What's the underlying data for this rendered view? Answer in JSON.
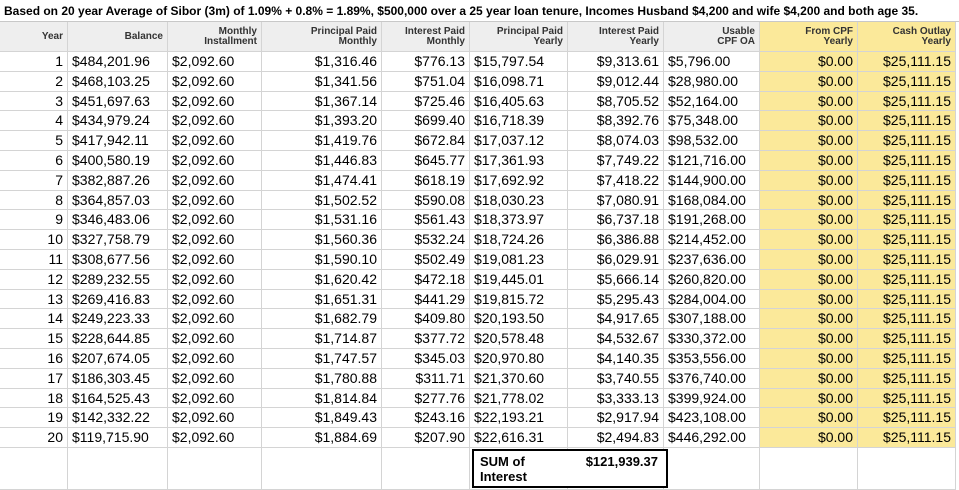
{
  "title": "Based on 20 year Average of Sibor (3m) of 1.09% + 0.8% = 1.89%, $500,000 over a 25 year loan tenure, Incomes Husband $4,200 and wife $4,200 and both age 35.",
  "table": {
    "columns": [
      [
        "Year"
      ],
      [
        "Balance"
      ],
      [
        "Monthly",
        "Installment"
      ],
      [
        "Principal Paid",
        "Monthly"
      ],
      [
        "Interest Paid",
        "Monthly"
      ],
      [
        "Principal Paid",
        "Yearly"
      ],
      [
        "Interest Paid",
        "Yearly"
      ],
      [
        "Usable",
        "CPF OA"
      ],
      [
        "From CPF",
        "Yearly"
      ],
      [
        "Cash Outlay",
        "Yearly"
      ]
    ],
    "rows": [
      [
        "1",
        "$484,201.96",
        "$2,092.60",
        "$1,316.46",
        "$776.13",
        "$15,797.54",
        "$9,313.61",
        "$5,796.00",
        "$0.00",
        "$25,111.15"
      ],
      [
        "2",
        "$468,103.25",
        "$2,092.60",
        "$1,341.56",
        "$751.04",
        "$16,098.71",
        "$9,012.44",
        "$28,980.00",
        "$0.00",
        "$25,111.15"
      ],
      [
        "3",
        "$451,697.63",
        "$2,092.60",
        "$1,367.14",
        "$725.46",
        "$16,405.63",
        "$8,705.52",
        "$52,164.00",
        "$0.00",
        "$25,111.15"
      ],
      [
        "4",
        "$434,979.24",
        "$2,092.60",
        "$1,393.20",
        "$699.40",
        "$16,718.39",
        "$8,392.76",
        "$75,348.00",
        "$0.00",
        "$25,111.15"
      ],
      [
        "5",
        "$417,942.11",
        "$2,092.60",
        "$1,419.76",
        "$672.84",
        "$17,037.12",
        "$8,074.03",
        "$98,532.00",
        "$0.00",
        "$25,111.15"
      ],
      [
        "6",
        "$400,580.19",
        "$2,092.60",
        "$1,446.83",
        "$645.77",
        "$17,361.93",
        "$7,749.22",
        "$121,716.00",
        "$0.00",
        "$25,111.15"
      ],
      [
        "7",
        "$382,887.26",
        "$2,092.60",
        "$1,474.41",
        "$618.19",
        "$17,692.92",
        "$7,418.22",
        "$144,900.00",
        "$0.00",
        "$25,111.15"
      ],
      [
        "8",
        "$364,857.03",
        "$2,092.60",
        "$1,502.52",
        "$590.08",
        "$18,030.23",
        "$7,080.91",
        "$168,084.00",
        "$0.00",
        "$25,111.15"
      ],
      [
        "9",
        "$346,483.06",
        "$2,092.60",
        "$1,531.16",
        "$561.43",
        "$18,373.97",
        "$6,737.18",
        "$191,268.00",
        "$0.00",
        "$25,111.15"
      ],
      [
        "10",
        "$327,758.79",
        "$2,092.60",
        "$1,560.36",
        "$532.24",
        "$18,724.26",
        "$6,386.88",
        "$214,452.00",
        "$0.00",
        "$25,111.15"
      ],
      [
        "11",
        "$308,677.56",
        "$2,092.60",
        "$1,590.10",
        "$502.49",
        "$19,081.23",
        "$6,029.91",
        "$237,636.00",
        "$0.00",
        "$25,111.15"
      ],
      [
        "12",
        "$289,232.55",
        "$2,092.60",
        "$1,620.42",
        "$472.18",
        "$19,445.01",
        "$5,666.14",
        "$260,820.00",
        "$0.00",
        "$25,111.15"
      ],
      [
        "13",
        "$269,416.83",
        "$2,092.60",
        "$1,651.31",
        "$441.29",
        "$19,815.72",
        "$5,295.43",
        "$284,004.00",
        "$0.00",
        "$25,111.15"
      ],
      [
        "14",
        "$249,223.33",
        "$2,092.60",
        "$1,682.79",
        "$409.80",
        "$20,193.50",
        "$4,917.65",
        "$307,188.00",
        "$0.00",
        "$25,111.15"
      ],
      [
        "15",
        "$228,644.85",
        "$2,092.60",
        "$1,714.87",
        "$377.72",
        "$20,578.48",
        "$4,532.67",
        "$330,372.00",
        "$0.00",
        "$25,111.15"
      ],
      [
        "16",
        "$207,674.05",
        "$2,092.60",
        "$1,747.57",
        "$345.03",
        "$20,970.80",
        "$4,140.35",
        "$353,556.00",
        "$0.00",
        "$25,111.15"
      ],
      [
        "17",
        "$186,303.45",
        "$2,092.60",
        "$1,780.88",
        "$311.71",
        "$21,370.60",
        "$3,740.55",
        "$376,740.00",
        "$0.00",
        "$25,111.15"
      ],
      [
        "18",
        "$164,525.43",
        "$2,092.60",
        "$1,814.84",
        "$277.76",
        "$21,778.02",
        "$3,333.13",
        "$399,924.00",
        "$0.00",
        "$25,111.15"
      ],
      [
        "19",
        "$142,332.22",
        "$2,092.60",
        "$1,849.43",
        "$243.16",
        "$22,193.21",
        "$2,917.94",
        "$423,108.00",
        "$0.00",
        "$25,111.15"
      ],
      [
        "20",
        "$119,715.90",
        "$2,092.60",
        "$1,884.69",
        "$207.90",
        "$22,616.31",
        "$2,494.83",
        "$446,292.00",
        "$0.00",
        "$25,111.15"
      ]
    ]
  },
  "summary": {
    "label": [
      "SUM of",
      "Interest"
    ],
    "value": "$121,939.37"
  }
}
